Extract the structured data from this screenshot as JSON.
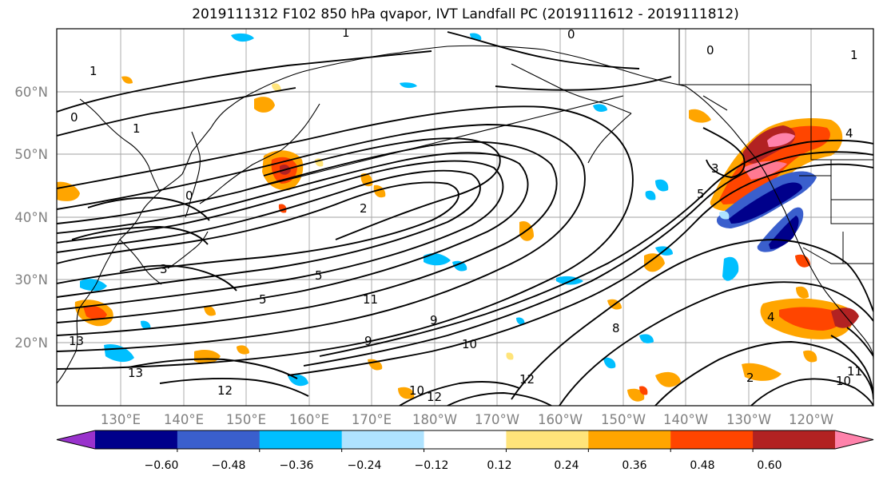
{
  "title": "2019111312 F102 850 hPa qvapor, IVT Landfall PC (2019111612 - 2019111812)",
  "lat_ticks": [
    "60°N",
    "50°N",
    "40°N",
    "30°N",
    "20°N"
  ],
  "lon_ticks": [
    "130°E",
    "140°E",
    "150°E",
    "160°E",
    "170°E",
    "180°W",
    "170°W",
    "160°W",
    "150°W",
    "140°W",
    "130°W",
    "120°W"
  ],
  "colorbar": {
    "ticks": [
      "−0.60",
      "−0.48",
      "−0.36",
      "−0.24",
      "−0.12",
      "0.12",
      "0.24",
      "0.36",
      "0.48",
      "0.60"
    ],
    "colors": [
      "#9932cc",
      "#00008b",
      "#3a5fcd",
      "#00bfff",
      "#afe3ff",
      "#ffffff",
      "#ffe47a",
      "#ffa500",
      "#ff4500",
      "#b22222",
      "#ff82ab"
    ]
  },
  "contour_labels": [
    "0",
    "0",
    "0",
    "1",
    "1",
    "1",
    "0",
    "1",
    "2",
    "3",
    "3",
    "4",
    "4",
    "5",
    "5",
    "5",
    "8",
    "9",
    "9",
    "10",
    "10",
    "11",
    "12",
    "12",
    "12",
    "10",
    "11",
    "13",
    "13",
    "2"
  ]
}
